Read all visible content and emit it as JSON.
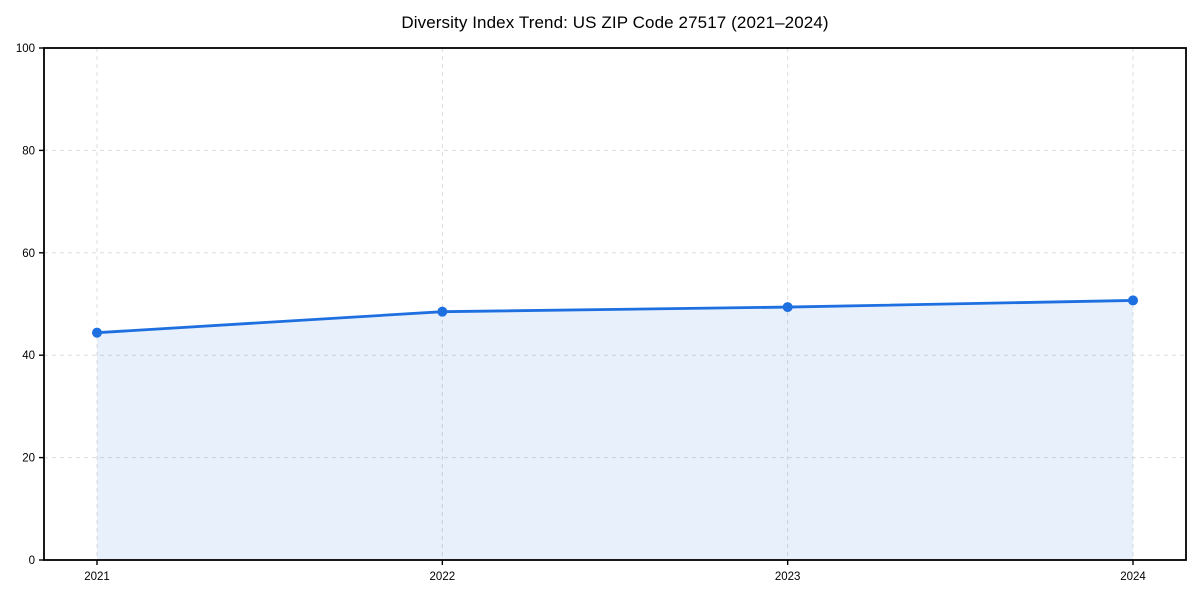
{
  "chart_data": {
    "type": "area",
    "title": "Diversity Index Trend: US ZIP Code 27517 (2021–2024)",
    "categories": [
      "2021",
      "2022",
      "2023",
      "2024"
    ],
    "series": [
      {
        "name": "Diversity Index",
        "values": [
          44.4,
          48.5,
          49.4,
          50.7
        ]
      }
    ],
    "xlabel": "",
    "ylabel": "",
    "ylim": [
      0,
      100
    ],
    "yticks": [
      0,
      20,
      40,
      60,
      80,
      100
    ],
    "grid": true,
    "grid_style": "dashed",
    "legend_position": "none",
    "colors": {
      "line": "#1e6fe0",
      "marker": "#1e6fe0",
      "fill": "#1e6fe0",
      "fill_opacity": 0.1,
      "grid": "#dcdcdc",
      "axis": "#000000",
      "tick_text": "#000000",
      "background": "#ffffff"
    }
  }
}
